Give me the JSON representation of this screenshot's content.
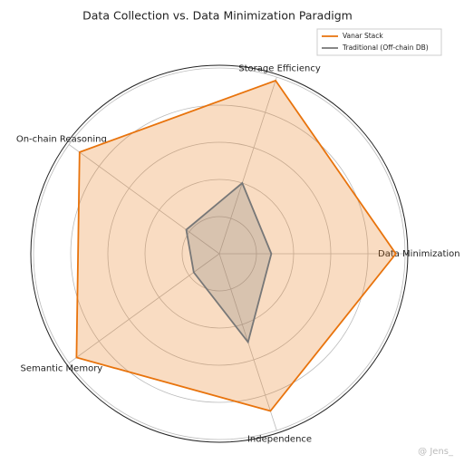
{
  "chart_data": {
    "type": "radar",
    "title": "Data Collection vs. Data Minimization Paradigm",
    "categories": [
      "Data Minimization",
      "Storage Efficiency",
      "On-chain Reasoning",
      "Semantic Memory",
      "Independence"
    ],
    "ylim": [
      0,
      10
    ],
    "yticks": [
      2,
      4,
      6,
      8,
      10
    ],
    "grid": true,
    "legend": "upper right",
    "series": [
      {
        "name": "Vanar Stack",
        "color": "#e8730c",
        "values": [
          9.5,
          9.8,
          9.3,
          9.5,
          8.9
        ]
      },
      {
        "name": "Traditional (Off-chain DB)",
        "color": "#777777",
        "values": [
          2.8,
          4,
          2.2,
          1.7,
          5
        ]
      }
    ],
    "watermark": "@ Jens_"
  }
}
